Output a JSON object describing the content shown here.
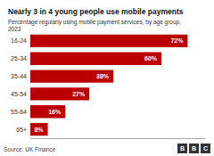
{
  "chart_data": {
    "type": "bar",
    "orientation": "horizontal",
    "title": "Nearly 3 in 4 young people use mobile payments",
    "subtitle": "Percentage regularly using mobile payment services, by age group,\n2023",
    "source": "Source: UK Finance",
    "annotations": [
      "B",
      "B",
      "C"
    ],
    "categories": [
      "16-24",
      "25-34",
      "35-44",
      "45-54",
      "55-64",
      "65+"
    ],
    "values": [
      72,
      60,
      38,
      27,
      16,
      8
    ],
    "value_labels": [
      "72%",
      "60%",
      "38%",
      "27%",
      "16%",
      "8%"
    ],
    "data_labels": true,
    "color": "#bb0000",
    "xlim": [
      0,
      80
    ],
    "tick_labels": "y",
    "grid": false
  }
}
